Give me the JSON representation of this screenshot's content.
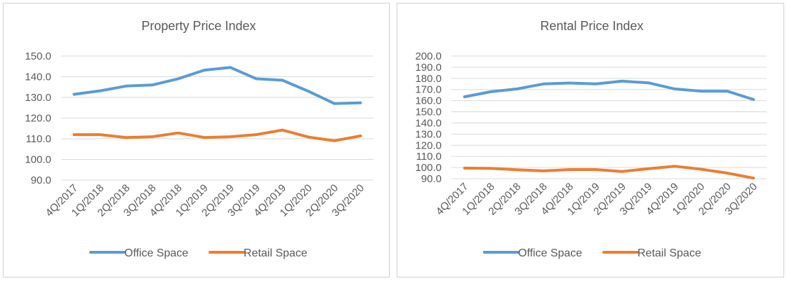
{
  "chart_data": [
    {
      "type": "line",
      "title": "Property Price Index",
      "categories": [
        "4Q/2017",
        "1Q/2018",
        "2Q/2018",
        "3Q/2018",
        "4Q/2018",
        "1Q/2019",
        "2Q/2019",
        "3Q/2019",
        "4Q/2019",
        "1Q/2020",
        "2Q/2020",
        "3Q/2020"
      ],
      "y_ticks": [
        "90.0",
        "100.0",
        "110.0",
        "120.0",
        "130.0",
        "140.0",
        "150.0"
      ],
      "ylim": [
        90,
        150
      ],
      "grid": true,
      "legend": "bottom",
      "series": [
        {
          "name": "Office Space",
          "color": "#5B9BD5",
          "values": [
            131.5,
            133.2,
            135.5,
            136.0,
            139.0,
            143.2,
            144.5,
            139.0,
            138.3,
            133.0,
            127.0,
            127.4
          ]
        },
        {
          "name": "Retail Space",
          "color": "#ED7D31",
          "values": [
            112.0,
            112.0,
            110.6,
            111.0,
            112.8,
            110.6,
            111.0,
            112.0,
            114.2,
            110.8,
            109.0,
            111.4
          ]
        }
      ]
    },
    {
      "type": "line",
      "title": "Rental Price Index",
      "categories": [
        "4Q/2017",
        "1Q/2018",
        "2Q/2018",
        "3Q/2018",
        "4Q/2018",
        "1Q/2019",
        "2Q/2019",
        "3Q/2019",
        "4Q/2019",
        "1Q/2020",
        "2Q/2020",
        "3Q/2020"
      ],
      "y_ticks": [
        "90.0",
        "100.0",
        "110.0",
        "120.0",
        "130.0",
        "140.0",
        "150.0",
        "160.0",
        "170.0",
        "180.0",
        "190.0",
        "200.0"
      ],
      "ylim": [
        90,
        200
      ],
      "grid": true,
      "legend": "bottom",
      "series": [
        {
          "name": "Office Space",
          "color": "#5B9BD5",
          "values": [
            163.5,
            168.0,
            170.5,
            175.0,
            175.8,
            175.0,
            177.5,
            176.0,
            170.5,
            168.5,
            168.5,
            161.0
          ]
        },
        {
          "name": "Retail Space",
          "color": "#ED7D31",
          "values": [
            99.5,
            99.3,
            98.0,
            97.0,
            98.2,
            98.2,
            96.5,
            99.0,
            101.2,
            98.5,
            95.0,
            90.5
          ]
        }
      ]
    }
  ]
}
